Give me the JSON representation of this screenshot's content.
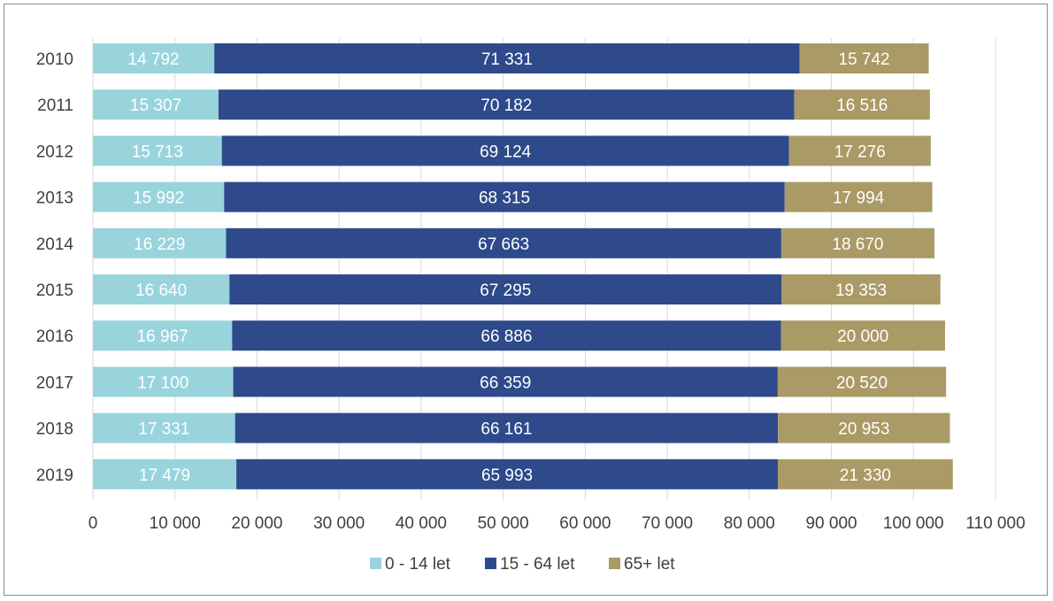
{
  "chart_data": {
    "type": "bar",
    "orientation": "horizontal",
    "stacked": true,
    "categories": [
      "2010",
      "2011",
      "2012",
      "2013",
      "2014",
      "2015",
      "2016",
      "2017",
      "2018",
      "2019"
    ],
    "series": [
      {
        "name": "0 - 14 let",
        "color": "#99d4dc",
        "values": [
          14792,
          15307,
          15713,
          15992,
          16229,
          16640,
          16967,
          17100,
          17331,
          17479
        ],
        "labels": [
          "14 792",
          "15 307",
          "15 713",
          "15 992",
          "16 229",
          "16 640",
          "16 967",
          "17 100",
          "17 331",
          "17 479"
        ]
      },
      {
        "name": "15 - 64 let",
        "color": "#2e4a8a",
        "values": [
          71331,
          70182,
          69124,
          68315,
          67663,
          67295,
          66886,
          66359,
          66161,
          65993
        ],
        "labels": [
          "71 331",
          "70 182",
          "69 124",
          "68 315",
          "67 663",
          "67 295",
          "66 886",
          "66 359",
          "66 161",
          "65 993"
        ]
      },
      {
        "name": "65+ let",
        "color": "#aa9a66",
        "values": [
          15742,
          16516,
          17276,
          17994,
          18670,
          19353,
          20000,
          20520,
          20953,
          21330
        ],
        "labels": [
          "15 742",
          "16 516",
          "17 276",
          "17 994",
          "18 670",
          "19 353",
          "20 000",
          "20 520",
          "20 953",
          "21 330"
        ]
      }
    ],
    "xlim": [
      0,
      110000
    ],
    "xticks": [
      0,
      10000,
      20000,
      30000,
      40000,
      50000,
      60000,
      70000,
      80000,
      90000,
      100000,
      110000
    ],
    "xtick_labels": [
      "0",
      "10 000",
      "20 000",
      "30 000",
      "40 000",
      "50 000",
      "60 000",
      "70 000",
      "80 000",
      "90 000",
      "100 000",
      "110 000"
    ],
    "grid": "vertical",
    "legend": "bottom"
  }
}
